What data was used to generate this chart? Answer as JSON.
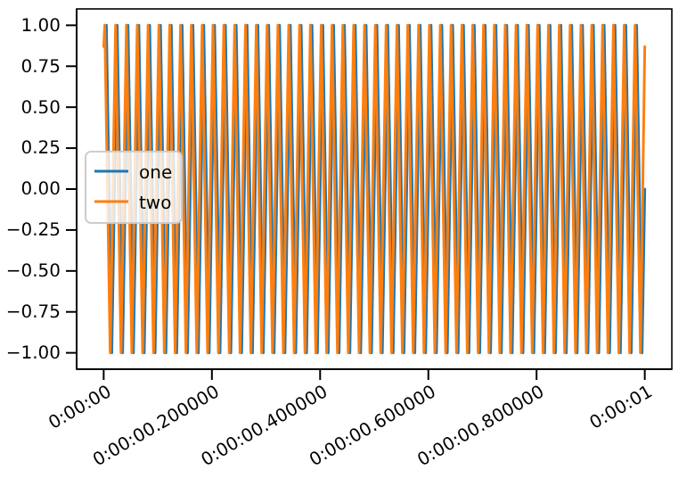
{
  "chart_data": {
    "type": "line",
    "xlim": [
      -0.05,
      1.05
    ],
    "ylim": [
      -1.1,
      1.1
    ],
    "xticks": [
      {
        "value": 0,
        "label": "0:00:00"
      },
      {
        "value": 0.2,
        "label": "0:00:00.200000"
      },
      {
        "value": 0.4,
        "label": "0:00:00.400000"
      },
      {
        "value": 0.6,
        "label": "0:00:00.600000"
      },
      {
        "value": 0.8,
        "label": "0:00:00.800000"
      },
      {
        "value": 1,
        "label": "0:00:01"
      }
    ],
    "yticks": [
      {
        "value": -1,
        "label": "−1.00"
      },
      {
        "value": -0.75,
        "label": "−0.75"
      },
      {
        "value": -0.5,
        "label": "−0.50"
      },
      {
        "value": -0.25,
        "label": "−0.25"
      },
      {
        "value": 0,
        "label": "0.00"
      },
      {
        "value": 0.25,
        "label": "0.25"
      },
      {
        "value": 0.5,
        "label": "0.50"
      },
      {
        "value": 0.75,
        "label": "0.75"
      },
      {
        "value": 1,
        "label": "1.00"
      }
    ],
    "grid": false,
    "legend": "left",
    "series": [
      {
        "name": "one",
        "color": "#1f77b4",
        "x": [
          0.005,
          0.015,
          0.025,
          0.035,
          0.045,
          0.055,
          0.065,
          0.075,
          0.085,
          0.095,
          0.105,
          0.115,
          0.125,
          0.135,
          0.145,
          0.155,
          0.165,
          0.175,
          0.185,
          0.195,
          0.205,
          0.215,
          0.225,
          0.235,
          0.245,
          0.255,
          0.265,
          0.275,
          0.285,
          0.295,
          0.305,
          0.315,
          0.325,
          0.335,
          0.345,
          0.355,
          0.365,
          0.375,
          0.385,
          0.395,
          0.405,
          0.415,
          0.425,
          0.435,
          0.445,
          0.455,
          0.465,
          0.475,
          0.485,
          0.495,
          0.505,
          0.515,
          0.525,
          0.535,
          0.545,
          0.555,
          0.565,
          0.575,
          0.585,
          0.595,
          0.605,
          0.615,
          0.625,
          0.635,
          0.645,
          0.655,
          0.665,
          0.675,
          0.685,
          0.695,
          0.705,
          0.715,
          0.725,
          0.735,
          0.745,
          0.755,
          0.765,
          0.775,
          0.785,
          0.795,
          0.805,
          0.815,
          0.825,
          0.835,
          0.845,
          0.855,
          0.865,
          0.875,
          0.885,
          0.895,
          0.905,
          0.915,
          0.925,
          0.935,
          0.945,
          0.955,
          0.965,
          0.975,
          0.985,
          0.995,
          1
        ],
        "values": [
          1,
          -1,
          1,
          -1,
          1,
          -1,
          1,
          -1,
          1,
          -1,
          1,
          -1,
          1,
          -1,
          1,
          -1,
          1,
          -1,
          1,
          -1,
          1,
          -1,
          1,
          -1,
          1,
          -1,
          1,
          -1,
          1,
          -1,
          1,
          -1,
          1,
          -1,
          1,
          -1,
          1,
          -1,
          1,
          -1,
          1,
          -1,
          1,
          -1,
          1,
          -1,
          1,
          -1,
          1,
          -1,
          1,
          -1,
          1,
          -1,
          1,
          -1,
          1,
          -1,
          1,
          -1,
          1,
          -1,
          1,
          -1,
          1,
          -1,
          1,
          -1,
          1,
          -1,
          1,
          -1,
          1,
          -1,
          1,
          -1,
          1,
          -1,
          1,
          -1,
          1,
          -1,
          1,
          -1,
          1,
          -1,
          1,
          -1,
          1,
          -1,
          1,
          -1,
          1,
          -1,
          1,
          -1,
          1,
          -1,
          1,
          -1,
          0
        ]
      },
      {
        "name": "two",
        "color": "#ff7f0e",
        "x": [
          0,
          0.002,
          0.012,
          0.022,
          0.032,
          0.042,
          0.052,
          0.062,
          0.072,
          0.082,
          0.092,
          0.102,
          0.112,
          0.122,
          0.132,
          0.142,
          0.152,
          0.162,
          0.172,
          0.182,
          0.192,
          0.202,
          0.212,
          0.222,
          0.232,
          0.242,
          0.252,
          0.262,
          0.272,
          0.282,
          0.292,
          0.302,
          0.312,
          0.322,
          0.332,
          0.342,
          0.352,
          0.362,
          0.372,
          0.382,
          0.392,
          0.402,
          0.412,
          0.422,
          0.432,
          0.442,
          0.452,
          0.462,
          0.472,
          0.482,
          0.492,
          0.502,
          0.512,
          0.522,
          0.532,
          0.542,
          0.552,
          0.562,
          0.572,
          0.582,
          0.592,
          0.602,
          0.612,
          0.622,
          0.632,
          0.642,
          0.652,
          0.662,
          0.672,
          0.682,
          0.692,
          0.702,
          0.712,
          0.722,
          0.732,
          0.742,
          0.752,
          0.762,
          0.772,
          0.782,
          0.792,
          0.802,
          0.812,
          0.822,
          0.832,
          0.842,
          0.852,
          0.862,
          0.872,
          0.882,
          0.892,
          0.902,
          0.912,
          0.922,
          0.932,
          0.942,
          0.952,
          0.962,
          0.972,
          0.982,
          0.992,
          1
        ],
        "values": [
          0.87,
          1,
          -1,
          1,
          -1,
          1,
          -1,
          1,
          -1,
          1,
          -1,
          1,
          -1,
          1,
          -1,
          1,
          -1,
          1,
          -1,
          1,
          -1,
          1,
          -1,
          1,
          -1,
          1,
          -1,
          1,
          -1,
          1,
          -1,
          1,
          -1,
          1,
          -1,
          1,
          -1,
          1,
          -1,
          1,
          -1,
          1,
          -1,
          1,
          -1,
          1,
          -1,
          1,
          -1,
          1,
          -1,
          1,
          -1,
          1,
          -1,
          1,
          -1,
          1,
          -1,
          1,
          -1,
          1,
          -1,
          1,
          -1,
          1,
          -1,
          1,
          -1,
          1,
          -1,
          1,
          -1,
          1,
          -1,
          1,
          -1,
          1,
          -1,
          1,
          -1,
          1,
          -1,
          1,
          -1,
          1,
          -1,
          1,
          -1,
          1,
          -1,
          1,
          -1,
          1,
          -1,
          1,
          -1,
          1,
          -1,
          1,
          -1,
          0.87
        ]
      }
    ]
  }
}
